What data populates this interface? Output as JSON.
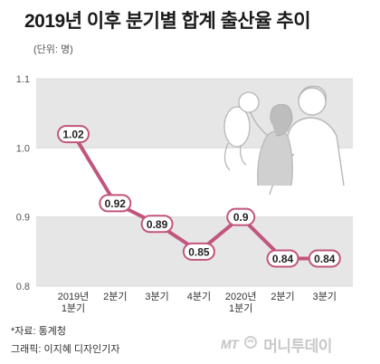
{
  "header": {
    "title": "2019년 이후 분기별 합계 출산율 추이",
    "unit": "(단위: 명)"
  },
  "footer": {
    "source": "*자료: 통계청",
    "credit": "그래픽: 이지혜 디자인기자",
    "brand_logo": "MT",
    "brand_name": "머니투데이"
  },
  "colors": {
    "line": "#c2557e",
    "marker_stroke": "#c2557e",
    "marker_fill": "#ffffff",
    "band": "#e6e6e6",
    "grid": "#ffffff",
    "illustration": "#b7b7b7"
  },
  "chart_data": {
    "type": "line",
    "title": "2019년 이후 분기별 합계 출산율 추이",
    "unit": "(단위: 명)",
    "categories": [
      "2019년\n1분기",
      "2분기",
      "3분기",
      "4분기",
      "2020년\n1분기",
      "2분기",
      "3분기"
    ],
    "series": [
      {
        "values": [
          1.02,
          0.92,
          0.89,
          0.85,
          0.9,
          0.84,
          0.84
        ],
        "labels": [
          "1.02",
          "0.92",
          "0.89",
          "0.85",
          "0.9",
          "0.84",
          "0.84"
        ]
      }
    ],
    "ylim": [
      0.8,
      1.1
    ],
    "yticks": [
      "1.1",
      "1.0",
      "0.9",
      "0.8"
    ],
    "ytick_values": [
      1.1,
      1.0,
      0.9,
      0.8
    ],
    "grid": true,
    "legend": "none"
  }
}
